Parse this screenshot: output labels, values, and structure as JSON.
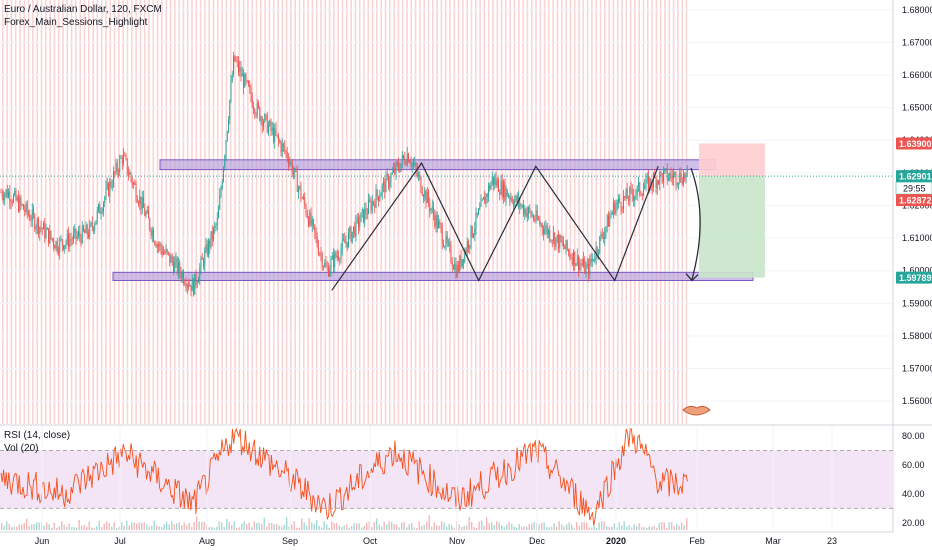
{
  "header": {
    "title": "Euro / Australian Dollar, 120, FXCM",
    "indicator": "Forex_Main_Sessions_Highlight"
  },
  "rsi_panel": {
    "rsi_label": "RSI (14, close)",
    "vol_label": "Vol (20)"
  },
  "price_badges": {
    "stop": "1.63900",
    "current": "1.62901",
    "countdown": "29:55",
    "open": "1.62872",
    "target": "1.59789"
  },
  "colors": {
    "candle_up": "#26a69a",
    "candle_down": "#ef5350",
    "session_band": "#f7c5c5",
    "zone_fill": "#b39ddb",
    "zone_stroke": "#7e57c2",
    "rsi_line": "#f4511e",
    "rsi_band": "#f3e5f5",
    "stop_fill": "#ffcdd2",
    "target_fill": "#c8e6c9",
    "current_price": "#26a69a",
    "stop_badge": "#ef5350",
    "target_badge": "#26a69a"
  },
  "chart_data": [
    {
      "type": "candlestick",
      "title": "Euro / Australian Dollar, 120, FXCM",
      "x_ticks": [
        "Jun",
        "Jul",
        "Aug",
        "Sep",
        "Oct",
        "Nov",
        "Dec",
        "2020",
        "Feb",
        "Mar",
        "23"
      ],
      "y_ticks": [
        "1.68000",
        "1.67000",
        "1.66000",
        "1.65000",
        "1.64000",
        "1.63000",
        "1.62000",
        "1.61000",
        "1.60000",
        "1.59000",
        "1.58000",
        "1.57000",
        "1.56000"
      ],
      "ylim": [
        1.553,
        1.683
      ],
      "close_keypoints": [
        {
          "x": "2019-05-21",
          "y": 1.624
        },
        {
          "x": "2019-06-08",
          "y": 1.608
        },
        {
          "x": "2019-06-20",
          "y": 1.612
        },
        {
          "x": "2019-07-02",
          "y": 1.635
        },
        {
          "x": "2019-07-15",
          "y": 1.608
        },
        {
          "x": "2019-07-28",
          "y": 1.595
        },
        {
          "x": "2019-08-06",
          "y": 1.615
        },
        {
          "x": "2019-08-12",
          "y": 1.665
        },
        {
          "x": "2019-08-20",
          "y": 1.65
        },
        {
          "x": "2019-09-01",
          "y": 1.635
        },
        {
          "x": "2019-09-15",
          "y": 1.6
        },
        {
          "x": "2019-10-01",
          "y": 1.62
        },
        {
          "x": "2019-10-15",
          "y": 1.636
        },
        {
          "x": "2019-11-02",
          "y": 1.6
        },
        {
          "x": "2019-11-15",
          "y": 1.628
        },
        {
          "x": "2019-12-02",
          "y": 1.615
        },
        {
          "x": "2019-12-20",
          "y": 1.6
        },
        {
          "x": "2019-12-30",
          "y": 1.62
        },
        {
          "x": "2020-01-16",
          "y": 1.629
        }
      ],
      "resistance_zone": [
        1.631,
        1.634
      ],
      "support_zone": [
        1.597,
        1.5995
      ],
      "last_price": 1.62901,
      "stop_loss": 1.639,
      "take_profit": 1.59789,
      "swing_pattern": [
        {
          "x": "2019-09-17",
          "y": 1.594
        },
        {
          "x": "2019-10-20",
          "y": 1.633
        },
        {
          "x": "2019-11-10",
          "y": 1.597
        },
        {
          "x": "2019-12-01",
          "y": 1.632
        },
        {
          "x": "2019-12-30",
          "y": 1.597
        },
        {
          "x": "2020-01-15",
          "y": 1.632
        }
      ]
    },
    {
      "type": "line",
      "name": "RSI (14, close)",
      "y_ticks": [
        "80.00",
        "60.00",
        "40.00",
        "20.00"
      ],
      "ylim": [
        15,
        87
      ],
      "band": [
        30,
        70
      ],
      "keypoints": [
        {
          "x": "2019-05-21",
          "y": 50
        },
        {
          "x": "2019-06-10",
          "y": 40
        },
        {
          "x": "2019-07-03",
          "y": 68
        },
        {
          "x": "2019-07-28",
          "y": 32
        },
        {
          "x": "2019-08-12",
          "y": 82
        },
        {
          "x": "2019-09-15",
          "y": 30
        },
        {
          "x": "2019-10-10",
          "y": 70
        },
        {
          "x": "2019-11-02",
          "y": 35
        },
        {
          "x": "2019-12-01",
          "y": 70
        },
        {
          "x": "2019-12-22",
          "y": 25
        },
        {
          "x": "2020-01-05",
          "y": 83
        },
        {
          "x": "2020-01-16",
          "y": 47
        }
      ]
    }
  ]
}
